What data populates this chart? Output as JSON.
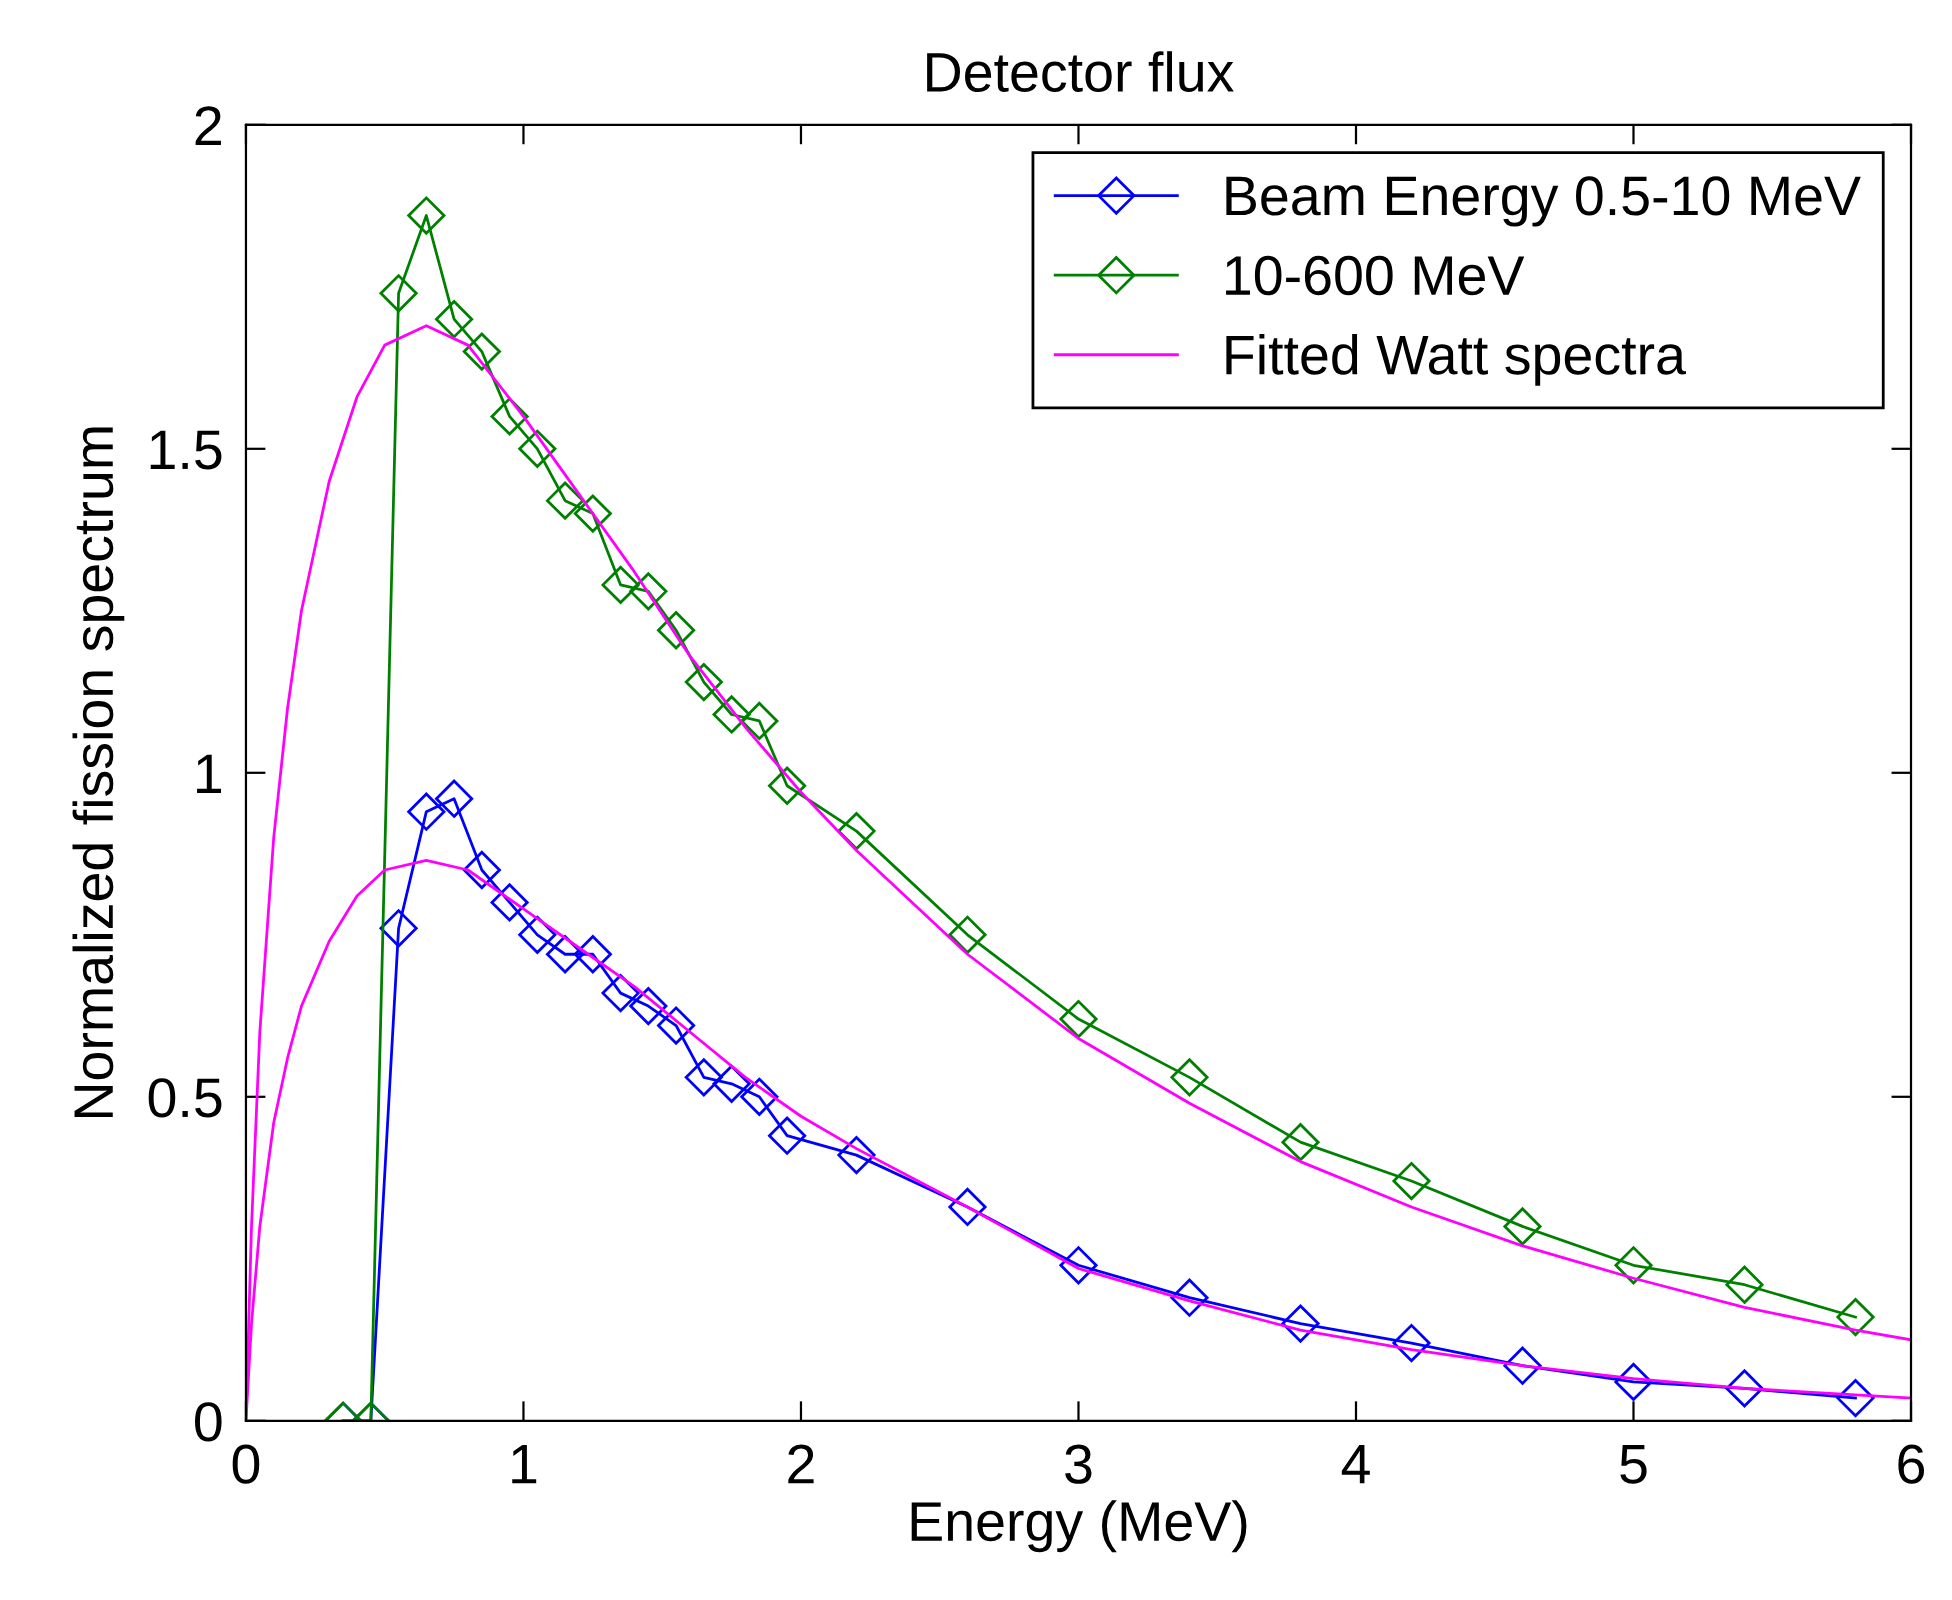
{
  "chart_data": {
    "type": "line",
    "title": "Detector flux",
    "xlabel": "Energy (MeV)",
    "ylabel": "Normalized fission spectrum",
    "x": [
      0.35,
      0.45,
      0.55,
      0.65,
      0.75,
      0.85,
      0.95,
      1.05,
      1.15,
      1.25,
      1.35,
      1.45,
      1.55,
      1.65,
      1.75,
      1.85,
      1.95,
      2.2,
      2.6,
      3.0,
      3.4,
      3.8,
      4.2,
      4.6,
      5.0,
      5.4,
      5.8
    ],
    "series": [
      {
        "name": "Beam Energy 0.5-10 MeV",
        "color": "#0000ff",
        "marker": "diamond",
        "values": [
          0,
          0,
          0.76,
          0.94,
          0.96,
          0.85,
          0.8,
          0.75,
          0.72,
          0.72,
          0.66,
          0.64,
          0.61,
          0.53,
          0.52,
          0.5,
          0.44,
          0.41,
          0.33,
          0.24,
          0.19,
          0.15,
          0.12,
          0.085,
          0.06,
          0.05,
          0.035
        ]
      },
      {
        "name": "10-600 MeV",
        "color": "#008000",
        "marker": "diamond",
        "values": [
          0,
          0,
          1.74,
          1.86,
          1.7,
          1.65,
          1.55,
          1.5,
          1.42,
          1.4,
          1.29,
          1.28,
          1.22,
          1.14,
          1.09,
          1.08,
          0.98,
          0.91,
          0.75,
          0.62,
          0.53,
          0.43,
          0.37,
          0.3,
          0.24,
          0.21,
          0.16
        ]
      },
      {
        "name": "Fitted Watt spectra",
        "color": "#ff00ff",
        "marker": "none",
        "x": [
          0,
          0.02,
          0.05,
          0.1,
          0.15,
          0.2,
          0.3,
          0.4,
          0.5,
          0.65,
          0.8,
          1.0,
          1.2,
          1.4,
          1.6,
          1.8,
          2.0,
          2.2,
          2.6,
          3.0,
          3.4,
          3.8,
          4.2,
          4.6,
          5.0,
          5.4,
          5.8,
          6.0
        ],
        "values": [
          0,
          0.3,
          0.6,
          0.9,
          1.1,
          1.25,
          1.45,
          1.58,
          1.66,
          1.69,
          1.66,
          1.55,
          1.43,
          1.31,
          1.18,
          1.07,
          0.97,
          0.88,
          0.72,
          0.59,
          0.49,
          0.4,
          0.33,
          0.27,
          0.22,
          0.175,
          0.14,
          0.125
        ]
      },
      {
        "color": "#ff00ff",
        "marker": "none",
        "x": [
          0,
          0.02,
          0.05,
          0.1,
          0.15,
          0.2,
          0.3,
          0.4,
          0.5,
          0.65,
          0.8,
          1.0,
          1.2,
          1.4,
          1.6,
          1.8,
          2.0,
          2.2,
          2.6,
          3.0,
          3.4,
          3.8,
          4.2,
          4.6,
          5.0,
          5.4,
          5.8,
          6.0
        ],
        "values": [
          0,
          0.15,
          0.3,
          0.46,
          0.56,
          0.64,
          0.74,
          0.81,
          0.85,
          0.865,
          0.85,
          0.79,
          0.73,
          0.67,
          0.6,
          0.53,
          0.47,
          0.42,
          0.33,
          0.235,
          0.185,
          0.14,
          0.11,
          0.085,
          0.065,
          0.05,
          0.04,
          0.035
        ]
      }
    ],
    "xlim": [
      0,
      6
    ],
    "xticks": [
      0,
      1,
      2,
      3,
      4,
      5,
      6
    ],
    "ylim": [
      0,
      2
    ],
    "yticks": [
      0,
      0.5,
      1,
      1.5,
      2
    ],
    "grid": false,
    "legend": "top right",
    "line_style": "solid"
  }
}
